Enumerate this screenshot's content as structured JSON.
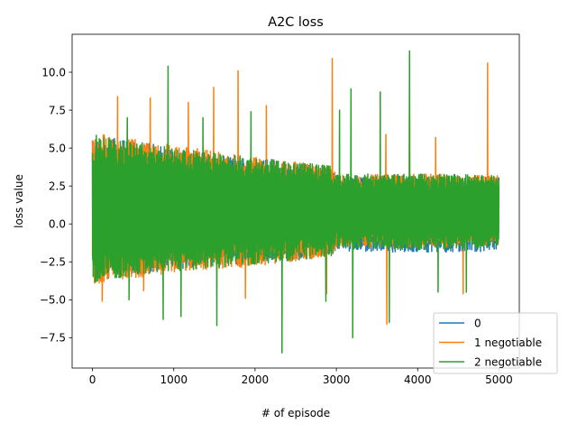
{
  "chart_data": {
    "type": "line",
    "title": "A2C loss",
    "xlabel": "# of episode",
    "ylabel": "loss value",
    "xlim": [
      -250,
      5250
    ],
    "ylim": [
      -9.5,
      12.5
    ],
    "xticks": [
      0,
      1000,
      2000,
      3000,
      4000,
      5000
    ],
    "yticks": [
      -7.5,
      -5.0,
      -2.5,
      0.0,
      2.5,
      5.0,
      7.5,
      10.0
    ],
    "xtick_labels": [
      "0",
      "1000",
      "2000",
      "3000",
      "4000",
      "5000"
    ],
    "ytick_labels": [
      "−7.5",
      "−5.0",
      "−2.5",
      "0.0",
      "2.5",
      "5.0",
      "7.5",
      "10.0"
    ],
    "grid": false,
    "legend_position": "lower-right",
    "episodes": 5000,
    "series": [
      {
        "name": "0",
        "color": "#1f77b4",
        "envelope": [
          {
            "x": 0,
            "ymin": -3.8,
            "ymax": 5.8
          },
          {
            "x": 500,
            "ymin": -3.3,
            "ymax": 5.5
          },
          {
            "x": 1000,
            "ymin": -3.0,
            "ymax": 5.0
          },
          {
            "x": 1500,
            "ymin": -2.8,
            "ymax": 4.6
          },
          {
            "x": 2000,
            "ymin": -2.6,
            "ymax": 4.3
          },
          {
            "x": 2500,
            "ymin": -2.3,
            "ymax": 4.0
          },
          {
            "x": 2950,
            "ymin": -2.0,
            "ymax": 3.6
          },
          {
            "x": 3000,
            "ymin": -1.8,
            "ymax": 3.2
          },
          {
            "x": 4000,
            "ymin": -1.9,
            "ymax": 3.2
          },
          {
            "x": 5000,
            "ymin": -1.8,
            "ymax": 3.1
          }
        ],
        "spikes": []
      },
      {
        "name": "1 negotiable",
        "color": "#ff7f0e",
        "envelope": [
          {
            "x": 0,
            "ymin": -4.0,
            "ymax": 6.0
          },
          {
            "x": 500,
            "ymin": -3.6,
            "ymax": 5.6
          },
          {
            "x": 1000,
            "ymin": -3.2,
            "ymax": 5.2
          },
          {
            "x": 1500,
            "ymin": -3.0,
            "ymax": 4.8
          },
          {
            "x": 2000,
            "ymin": -2.8,
            "ymax": 4.4
          },
          {
            "x": 2500,
            "ymin": -2.5,
            "ymax": 4.1
          },
          {
            "x": 2950,
            "ymin": -2.2,
            "ymax": 3.8
          },
          {
            "x": 3000,
            "ymin": -1.5,
            "ymax": 3.2
          },
          {
            "x": 4000,
            "ymin": -1.6,
            "ymax": 3.3
          },
          {
            "x": 5000,
            "ymin": -1.4,
            "ymax": 3.2
          }
        ],
        "spikes": [
          {
            "x": 310,
            "y": 8.4
          },
          {
            "x": 120,
            "y": -5.1
          },
          {
            "x": 710,
            "y": 8.3
          },
          {
            "x": 1180,
            "y": 8.0
          },
          {
            "x": 1490,
            "y": 9.0
          },
          {
            "x": 1790,
            "y": 10.1
          },
          {
            "x": 2140,
            "y": 7.8
          },
          {
            "x": 1880,
            "y": -4.9
          },
          {
            "x": 2950,
            "y": 10.9
          },
          {
            "x": 2880,
            "y": -4.6
          },
          {
            "x": 3620,
            "y": -6.6
          },
          {
            "x": 3610,
            "y": 5.9
          },
          {
            "x": 4220,
            "y": 5.7
          },
          {
            "x": 4560,
            "y": -4.6
          },
          {
            "x": 4860,
            "y": 10.6
          },
          {
            "x": 3900,
            "y": 8.9
          },
          {
            "x": 630,
            "y": -4.4
          }
        ]
      },
      {
        "name": "2 negotiable",
        "color": "#2ca02c",
        "envelope": [
          {
            "x": 0,
            "ymin": -3.9,
            "ymax": 5.9
          },
          {
            "x": 500,
            "ymin": -3.4,
            "ymax": 5.4
          },
          {
            "x": 1000,
            "ymin": -3.1,
            "ymax": 5.0
          },
          {
            "x": 1500,
            "ymin": -2.9,
            "ymax": 4.7
          },
          {
            "x": 2000,
            "ymin": -2.7,
            "ymax": 4.4
          },
          {
            "x": 2500,
            "ymin": -2.4,
            "ymax": 4.1
          },
          {
            "x": 2950,
            "ymin": -2.1,
            "ymax": 3.8
          },
          {
            "x": 3000,
            "ymin": -1.6,
            "ymax": 3.3
          },
          {
            "x": 4000,
            "ymin": -1.7,
            "ymax": 3.3
          },
          {
            "x": 5000,
            "ymin": -1.6,
            "ymax": 3.2
          }
        ],
        "spikes": [
          {
            "x": 930,
            "y": 10.4
          },
          {
            "x": 2330,
            "y": -8.5
          },
          {
            "x": 3900,
            "y": 11.4
          },
          {
            "x": 3200,
            "y": -7.5
          },
          {
            "x": 3180,
            "y": 8.9
          },
          {
            "x": 3040,
            "y": 7.5
          },
          {
            "x": 3650,
            "y": -6.5
          },
          {
            "x": 1530,
            "y": -6.7
          },
          {
            "x": 1090,
            "y": -6.1
          },
          {
            "x": 870,
            "y": -6.3
          },
          {
            "x": 1360,
            "y": -5.6
          },
          {
            "x": 1360,
            "y": 7.0
          },
          {
            "x": 430,
            "y": 7.0
          },
          {
            "x": 4250,
            "y": -4.5
          },
          {
            "x": 4600,
            "y": -4.5
          },
          {
            "x": 450,
            "y": -5.0
          },
          {
            "x": 2870,
            "y": -5.1
          },
          {
            "x": 1950,
            "y": 7.4
          },
          {
            "x": 3540,
            "y": 8.7
          }
        ]
      }
    ]
  }
}
